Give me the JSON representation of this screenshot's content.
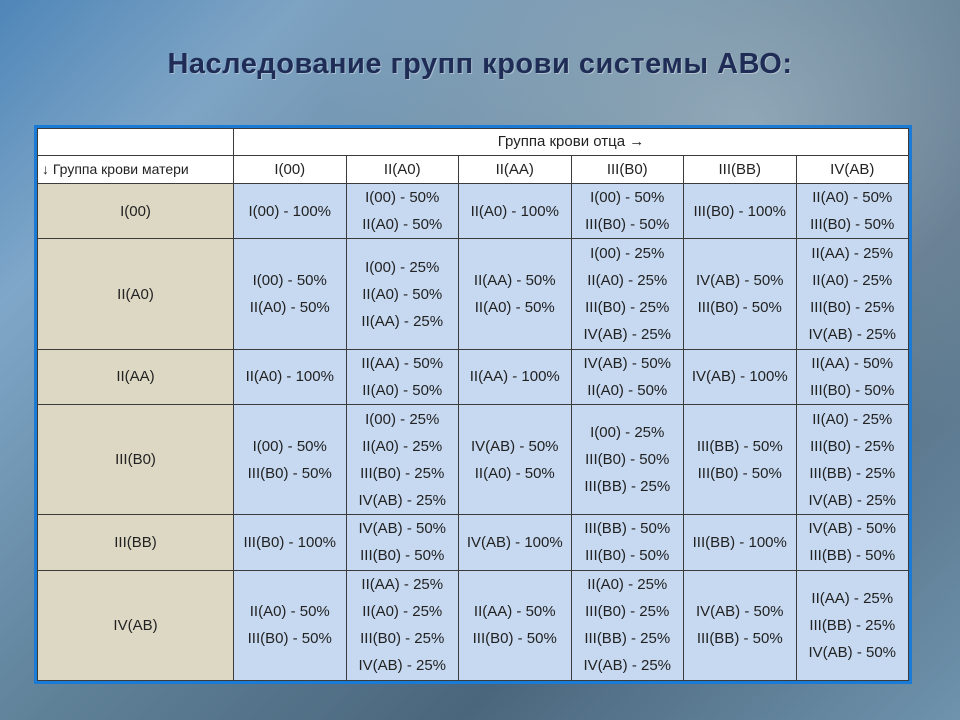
{
  "title": "Наследование групп крови системы АВО:",
  "table": {
    "father_header": "Группа крови отца →",
    "mother_header": "↓ Группа крови матери",
    "father_groups": [
      "I(00)",
      "II(A0)",
      "II(AA)",
      "III(B0)",
      "III(BB)",
      "IV(AB)"
    ],
    "rows": [
      {
        "mother": "I(00)",
        "cells": [
          [
            "I(00) - 100%"
          ],
          [
            "I(00) - 50%",
            "II(A0) - 50%"
          ],
          [
            "II(A0) - 100%"
          ],
          [
            "I(00) - 50%",
            "III(B0) - 50%"
          ],
          [
            "III(B0) - 100%"
          ],
          [
            "II(A0) - 50%",
            "III(B0) - 50%"
          ]
        ]
      },
      {
        "mother": "II(A0)",
        "cells": [
          [
            "I(00) - 50%",
            "II(A0) - 50%"
          ],
          [
            "I(00) - 25%",
            "II(A0) - 50%",
            "II(AA) - 25%"
          ],
          [
            "II(AA) - 50%",
            "II(A0) - 50%"
          ],
          [
            "I(00) - 25%",
            "II(A0) - 25%",
            "III(B0) - 25%",
            "IV(AB) - 25%"
          ],
          [
            "IV(AB) - 50%",
            "III(B0) - 50%"
          ],
          [
            "II(AA) - 25%",
            "II(A0) - 25%",
            "III(B0) - 25%",
            "IV(AB) - 25%"
          ]
        ]
      },
      {
        "mother": "II(AA)",
        "cells": [
          [
            "II(A0) - 100%"
          ],
          [
            "II(AA) - 50%",
            "II(A0) - 50%"
          ],
          [
            "II(AA) - 100%"
          ],
          [
            "IV(AB) - 50%",
            "II(A0) - 50%"
          ],
          [
            "IV(AB) - 100%"
          ],
          [
            "II(AA) - 50%",
            "III(B0) - 50%"
          ]
        ]
      },
      {
        "mother": "III(B0)",
        "cells": [
          [
            "I(00) - 50%",
            "III(B0) - 50%"
          ],
          [
            "I(00) - 25%",
            "II(A0) - 25%",
            "III(B0) - 25%",
            "IV(AB) - 25%"
          ],
          [
            "IV(AB) - 50%",
            "II(A0) - 50%"
          ],
          [
            "I(00) - 25%",
            "III(B0) - 50%",
            "III(BB) - 25%"
          ],
          [
            "III(BB) - 50%",
            "III(B0) - 50%"
          ],
          [
            "II(A0) - 25%",
            "III(B0) - 25%",
            "III(BB) - 25%",
            "IV(AB) - 25%"
          ]
        ]
      },
      {
        "mother": "III(BB)",
        "cells": [
          [
            "III(B0) - 100%"
          ],
          [
            "IV(AB) - 50%",
            "III(B0) - 50%"
          ],
          [
            "IV(AB) - 100%"
          ],
          [
            "III(BB) - 50%",
            "III(B0) - 50%"
          ],
          [
            "III(BB) - 100%"
          ],
          [
            "IV(AB) - 50%",
            "III(BB) - 50%"
          ]
        ]
      },
      {
        "mother": "IV(AB)",
        "cells": [
          [
            "II(A0) - 50%",
            "III(B0) - 50%"
          ],
          [
            "II(AA) - 25%",
            "II(A0) - 25%",
            "III(B0) - 25%",
            "IV(AB) - 25%"
          ],
          [
            "II(AA) - 50%",
            "III(B0) - 50%"
          ],
          [
            "II(A0) - 25%",
            "III(B0) - 25%",
            "III(BB) - 25%",
            "IV(AB) - 25%"
          ],
          [
            "IV(AB) - 50%",
            "III(BB) - 50%"
          ],
          [
            "II(AA) - 25%",
            "III(BB) - 25%",
            "IV(AB) - 50%"
          ]
        ]
      }
    ]
  }
}
